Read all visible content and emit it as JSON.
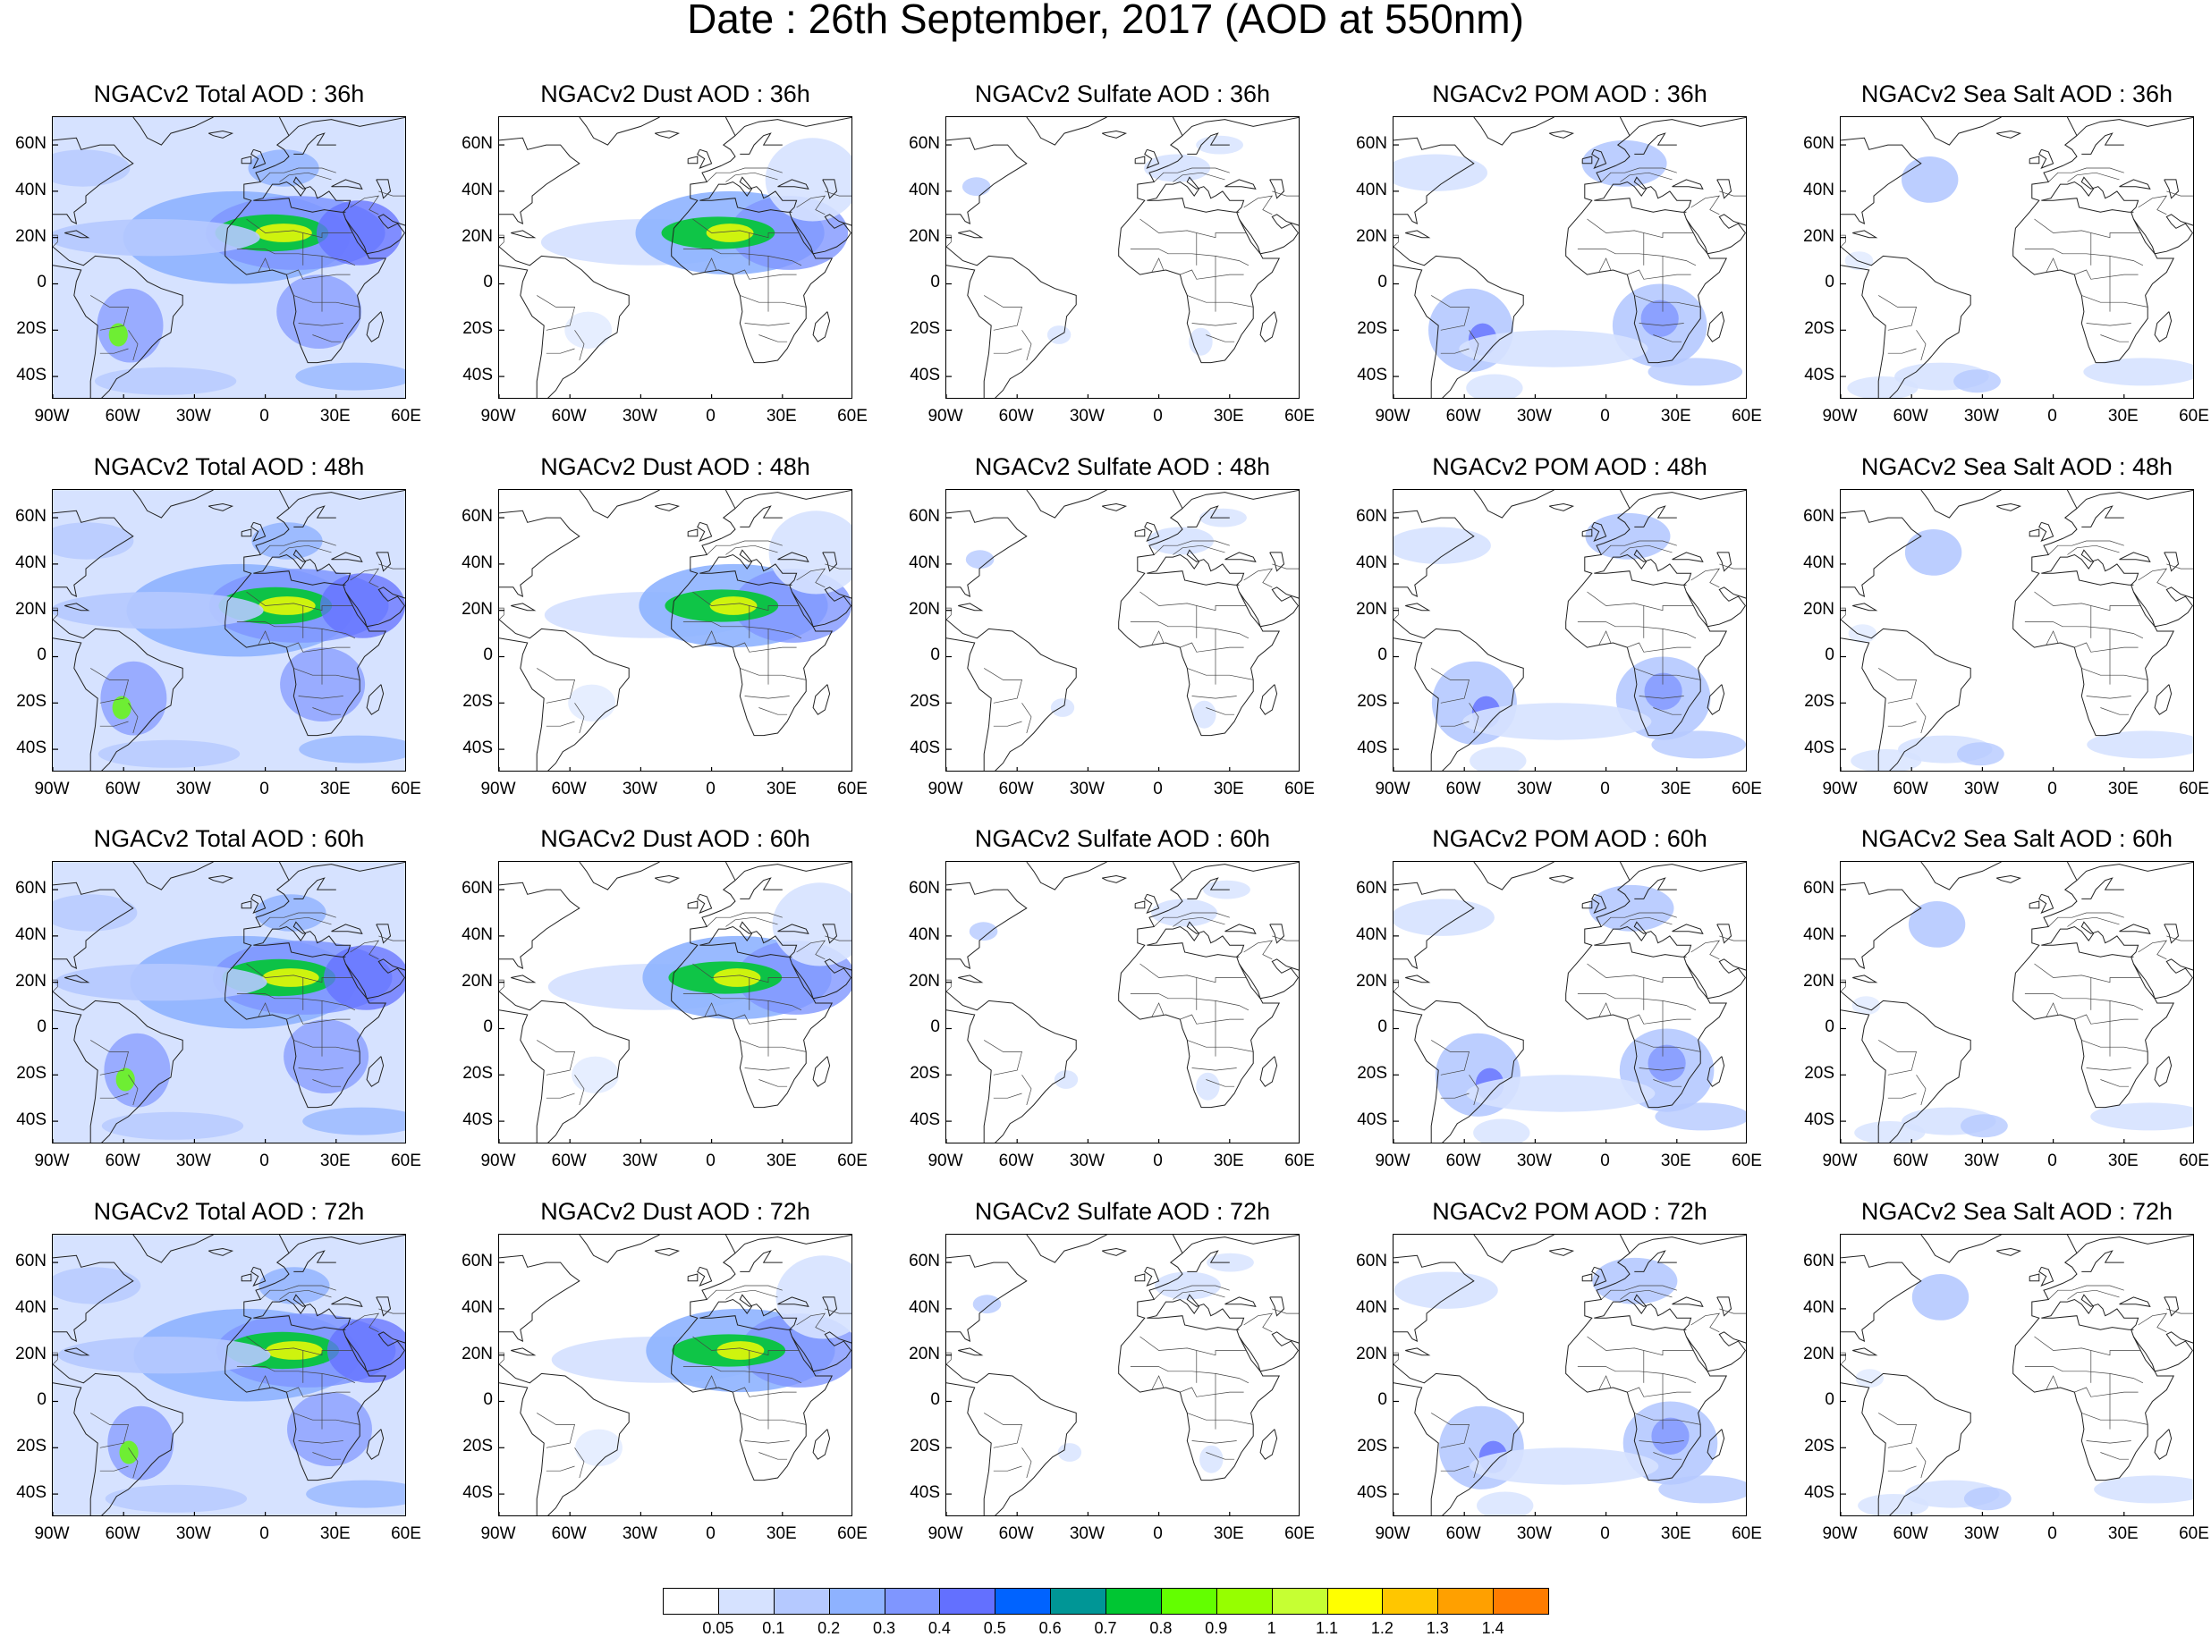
{
  "title": "Date : 26th September, 2017 (AOD at 550nm)",
  "lat_ticks": [
    "60N",
    "40N",
    "20N",
    "0",
    "20S",
    "40S"
  ],
  "lon_ticks": [
    "90W",
    "60W",
    "30W",
    "0",
    "30E",
    "60E"
  ],
  "panels": [
    [
      "NGACv2 Total AOD : 36h",
      "NGACv2 Dust AOD : 36h",
      "NGACv2 Sulfate AOD : 36h",
      "NGACv2 POM AOD : 36h",
      "NGACv2 Sea Salt AOD : 36h"
    ],
    [
      "NGACv2 Total AOD : 48h",
      "NGACv2 Dust AOD : 48h",
      "NGACv2 Sulfate AOD : 48h",
      "NGACv2 POM AOD : 48h",
      "NGACv2 Sea Salt AOD : 48h"
    ],
    [
      "NGACv2 Total AOD : 60h",
      "NGACv2 Dust AOD : 60h",
      "NGACv2 Sulfate AOD : 60h",
      "NGACv2 POM AOD : 60h",
      "NGACv2 Sea Salt AOD : 60h"
    ],
    [
      "NGACv2 Total AOD : 72h",
      "NGACv2 Dust AOD : 72h",
      "NGACv2 Sulfate AOD : 72h",
      "NGACv2 POM AOD : 72h",
      "NGACv2 Sea Salt  AOD : 72h"
    ]
  ],
  "colorbar": {
    "colors": [
      "#ffffff",
      "#d6e2ff",
      "#b5c9ff",
      "#8eb2ff",
      "#7f96ff",
      "#6370ff",
      "#0063ff",
      "#009696",
      "#00c633",
      "#63ff00",
      "#96ff00",
      "#c6ff33",
      "#ffff00",
      "#ffc600",
      "#ffa000",
      "#ff7c00",
      "#ff1900"
    ],
    "labels": [
      "0.05",
      "0.1",
      "0.2",
      "0.3",
      "0.4",
      "0.5",
      "0.6",
      "0.7",
      "0.8",
      "0.9",
      "1",
      "1.1",
      "1.2",
      "1.3",
      "1.4"
    ]
  }
}
